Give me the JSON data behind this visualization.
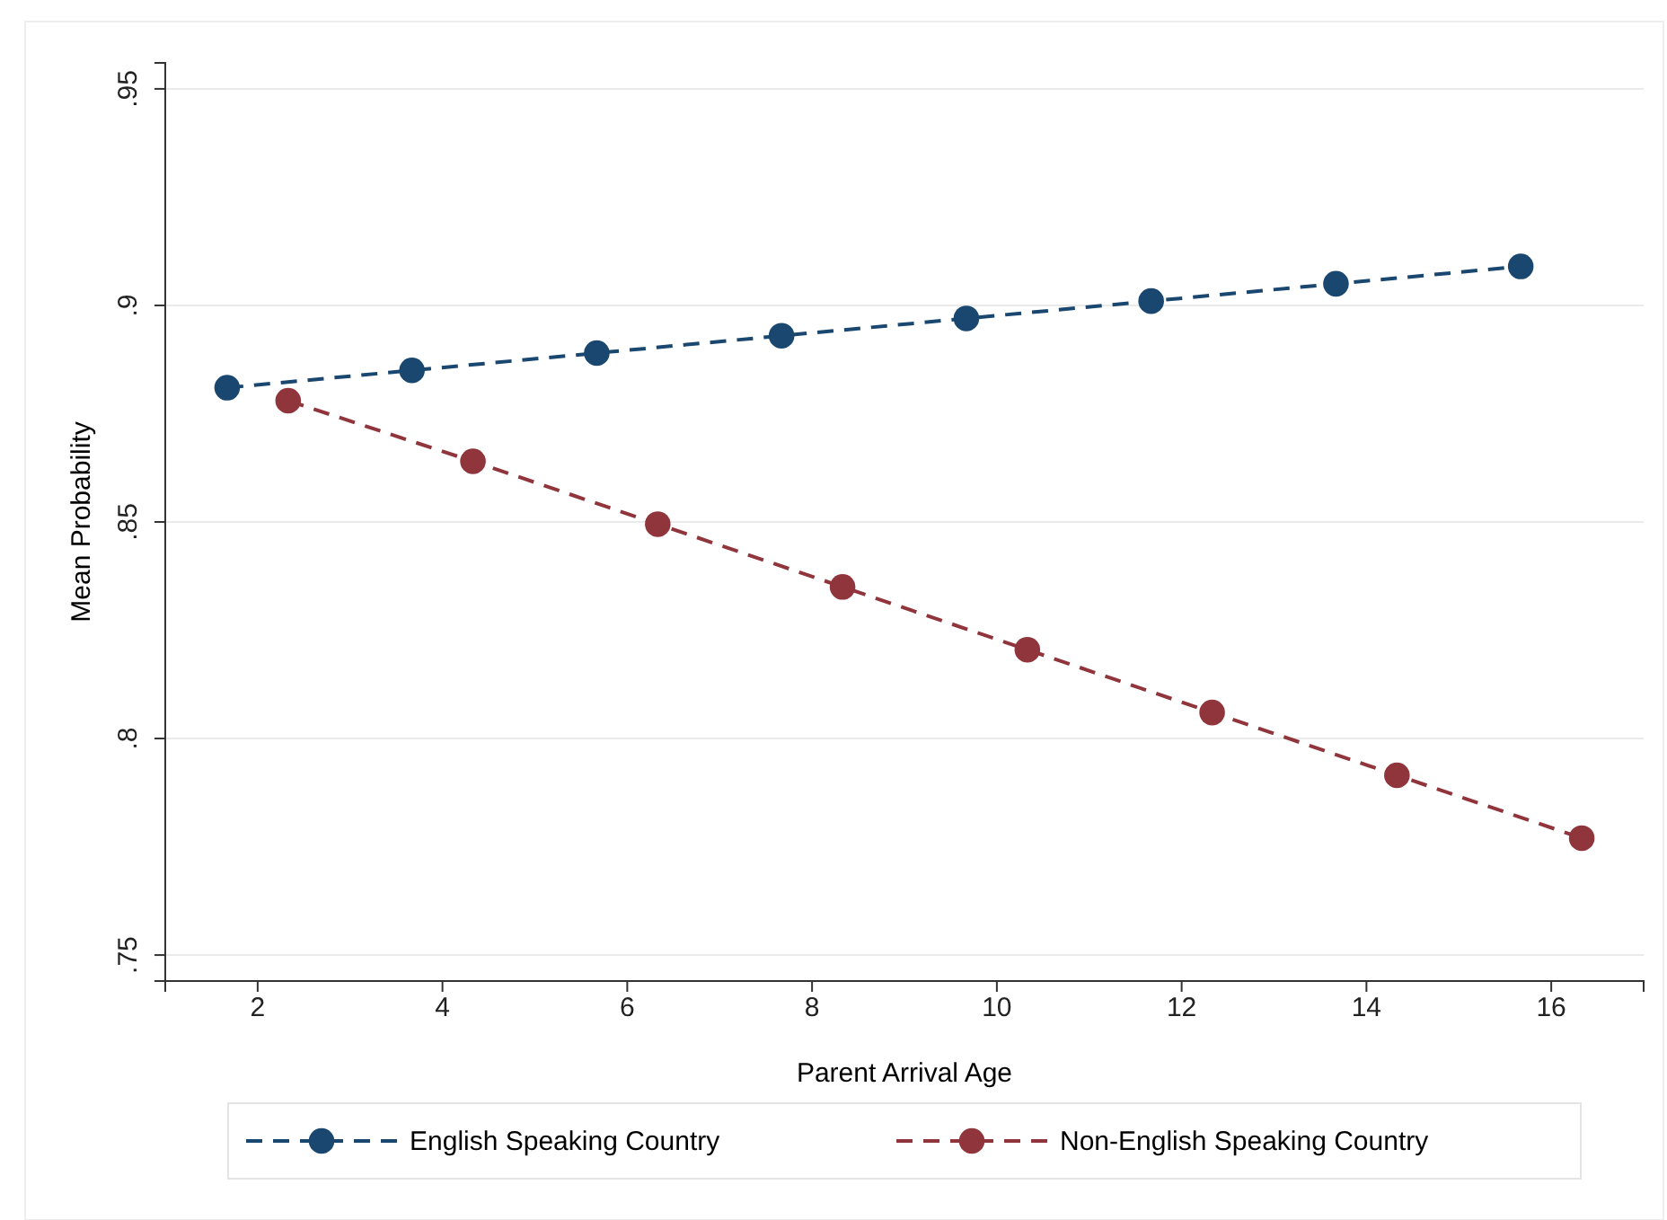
{
  "chart_data": {
    "type": "line",
    "xlabel": "Parent Arrival Age",
    "ylabel": "Mean Probability",
    "xlim": [
      1,
      17
    ],
    "xticks": [
      2,
      4,
      6,
      8,
      10,
      12,
      14,
      16
    ],
    "ylim": [
      0.744,
      0.956
    ],
    "yticks": [
      {
        "value": 0.75,
        "label": ".75"
      },
      {
        "value": 0.8,
        "label": ".8"
      },
      {
        "value": 0.85,
        "label": ".85"
      },
      {
        "value": 0.9,
        "label": ".9"
      },
      {
        "value": 0.95,
        "label": ".95"
      }
    ],
    "grid": "y",
    "legend": "bottom",
    "marker": "circle",
    "line_style": "dashed",
    "series": [
      {
        "name": "English Speaking Country",
        "color": "#1a476f",
        "x": [
          1.67,
          3.67,
          5.67,
          7.67,
          9.67,
          11.67,
          13.67,
          15.67
        ],
        "values": [
          0.881,
          0.885,
          0.889,
          0.893,
          0.897,
          0.901,
          0.905,
          0.909
        ]
      },
      {
        "name": "Non-English Speaking Country",
        "color": "#90353b",
        "x": [
          2.33,
          4.33,
          6.33,
          8.33,
          10.33,
          12.33,
          14.33,
          16.33
        ],
        "values": [
          0.878,
          0.864,
          0.8495,
          0.835,
          0.8205,
          0.806,
          0.7915,
          0.777
        ]
      }
    ]
  }
}
